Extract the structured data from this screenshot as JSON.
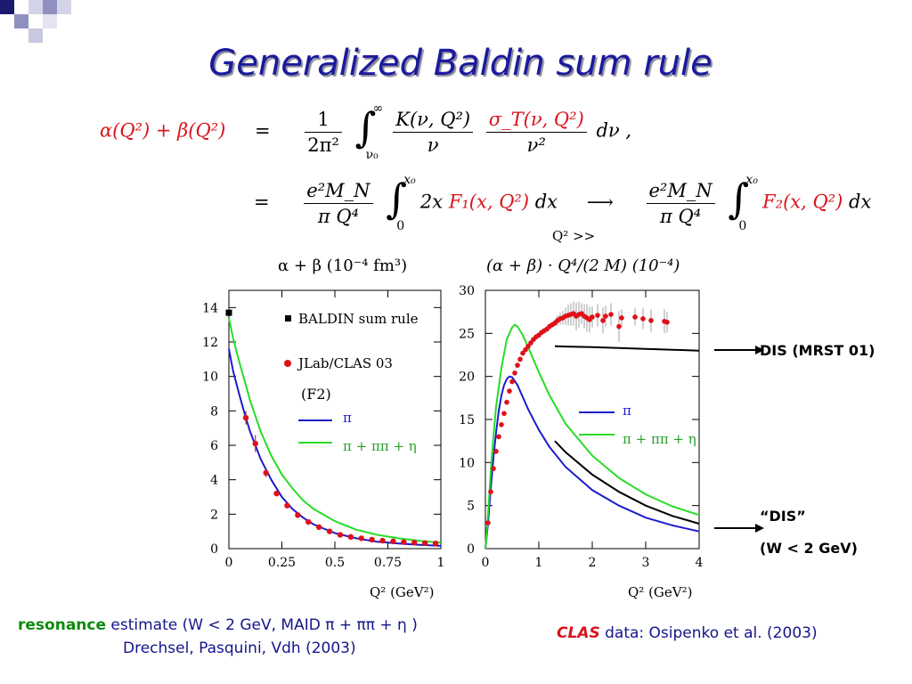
{
  "slide": {
    "title": "Generalized Baldin sum rule",
    "equation": {
      "lhs": "α(Q²) + β(Q²)",
      "eq_sign": "=",
      "row1_frac_num": "1",
      "row1_frac_den": "2π²",
      "row1_int_upper": "∞",
      "row1_int_lower": "ν₀",
      "row1_term1_num": "K(ν, Q²)",
      "row1_term1_den": "ν",
      "row1_term2_num": "σ_T(ν, Q²)",
      "row1_term2_den": "ν²",
      "row1_tail": "dν ,",
      "row2_frac_num": "e²M_N",
      "row2_frac_den": "π Q⁴",
      "row2_int_upper": "x₀",
      "row2_int_lower": "0",
      "row2_integrand_a": "2x",
      "row2_integrand_red": "F₁(x, Q²)",
      "row2_integrand_b": "dx",
      "arrow": "⟶",
      "row2_int2_upper": "x₀",
      "row2_int2_lower": "0",
      "row2_integrand2_red": "F₂(x, Q²)",
      "row2_integrand2_b": "dx",
      "q2_note": "Q² >>"
    },
    "left_plot_label": "α + β  (10⁻⁴ fm³)",
    "right_plot_label": "(α + β) · Q⁴/(2 M)  (10⁻⁴)",
    "notes": {
      "dis_mrst": "DIS (MRST 01)",
      "dis_quoted": "“DIS”",
      "w_cut": "(W < 2 GeV)"
    },
    "caption_left_line1": {
      "bold": "resonance",
      "rest": " estimate (W < 2 GeV, MAID π  + ππ + η )"
    },
    "caption_left_line2": "Drechsel, Pasquini, Vdh (2003)",
    "caption_right": {
      "bold": "CLAS",
      "rest": " data:  Osipenko et al. (2003)"
    }
  },
  "chart_data": [
    {
      "type": "line",
      "xlabel": "Q² (GeV²)",
      "ylabel": "",
      "xlim": [
        0,
        1
      ],
      "ylim": [
        0,
        15
      ],
      "xticks": [
        "0",
        "0.25",
        "0.5",
        "0.75",
        "1"
      ],
      "yticks": [
        "0",
        "2",
        "4",
        "6",
        "8",
        "10",
        "12",
        "14"
      ],
      "legend_position": "top-right",
      "legend": {
        "baldin": "BALDIN sum rule",
        "clas": "JLab/CLAS 03",
        "f2": "(F2)",
        "pi": "π",
        "pi_pipi_eta": "π + ππ + η"
      },
      "baldin_point": {
        "x": 0.0,
        "y": 13.7
      },
      "series": [
        {
          "name": "π",
          "color": "#1c1ccc",
          "points": [
            [
              0,
              11.6
            ],
            [
              0.02,
              10.3
            ],
            [
              0.05,
              8.9
            ],
            [
              0.08,
              7.6
            ],
            [
              0.1,
              6.8
            ],
            [
              0.15,
              5.2
            ],
            [
              0.2,
              4.0
            ],
            [
              0.25,
              3.0
            ],
            [
              0.3,
              2.3
            ],
            [
              0.35,
              1.8
            ],
            [
              0.4,
              1.4
            ],
            [
              0.5,
              0.9
            ],
            [
              0.6,
              0.6
            ],
            [
              0.7,
              0.4
            ],
            [
              0.8,
              0.3
            ],
            [
              0.9,
              0.22
            ],
            [
              1.0,
              0.16
            ]
          ]
        },
        {
          "name": "π + ππ + η",
          "color": "#28dc28",
          "points": [
            [
              0,
              13.4
            ],
            [
              0.02,
              12.2
            ],
            [
              0.05,
              10.8
            ],
            [
              0.08,
              9.5
            ],
            [
              0.1,
              8.6
            ],
            [
              0.15,
              6.8
            ],
            [
              0.2,
              5.4
            ],
            [
              0.25,
              4.3
            ],
            [
              0.3,
              3.5
            ],
            [
              0.35,
              2.8
            ],
            [
              0.4,
              2.3
            ],
            [
              0.5,
              1.6
            ],
            [
              0.6,
              1.1
            ],
            [
              0.7,
              0.8
            ],
            [
              0.8,
              0.6
            ],
            [
              0.9,
              0.45
            ],
            [
              1.0,
              0.35
            ]
          ]
        }
      ],
      "clas_points": [
        {
          "x": 0.08,
          "y": 7.6,
          "err": 0.4
        },
        {
          "x": 0.125,
          "y": 6.1,
          "err": 0.5
        },
        {
          "x": 0.175,
          "y": 4.4,
          "err": 0.25
        },
        {
          "x": 0.225,
          "y": 3.2,
          "err": 0.1
        },
        {
          "x": 0.275,
          "y": 2.5,
          "err": 0.1
        },
        {
          "x": 0.325,
          "y": 1.95,
          "err": 0.1
        },
        {
          "x": 0.375,
          "y": 1.55,
          "err": 0.08
        },
        {
          "x": 0.425,
          "y": 1.25,
          "err": 0.08
        },
        {
          "x": 0.475,
          "y": 1.0,
          "err": 0.06
        },
        {
          "x": 0.525,
          "y": 0.8,
          "err": 0.06
        },
        {
          "x": 0.575,
          "y": 0.68,
          "err": 0.05
        },
        {
          "x": 0.625,
          "y": 0.6,
          "err": 0.05
        },
        {
          "x": 0.675,
          "y": 0.52,
          "err": 0.05
        },
        {
          "x": 0.725,
          "y": 0.46,
          "err": 0.04
        },
        {
          "x": 0.775,
          "y": 0.42,
          "err": 0.04
        },
        {
          "x": 0.825,
          "y": 0.38,
          "err": 0.04
        },
        {
          "x": 0.875,
          "y": 0.35,
          "err": 0.04
        },
        {
          "x": 0.925,
          "y": 0.32,
          "err": 0.03
        },
        {
          "x": 0.975,
          "y": 0.3,
          "err": 0.03
        }
      ]
    },
    {
      "type": "line",
      "xlabel": "Q² (GeV²)",
      "ylabel": "",
      "xlim": [
        0,
        4
      ],
      "ylim": [
        0,
        30
      ],
      "xticks": [
        "0",
        "1",
        "2",
        "3",
        "4"
      ],
      "yticks": [
        "0",
        "5",
        "10",
        "15",
        "20",
        "25",
        "30"
      ],
      "legend_position": "right",
      "legend": {
        "pi": "π",
        "pi_pipi_eta": "π + ππ + η"
      },
      "series": [
        {
          "name": "π",
          "color": "#1c1ccc",
          "points": [
            [
              0,
              0
            ],
            [
              0.05,
              3
            ],
            [
              0.1,
              7
            ],
            [
              0.15,
              10.5
            ],
            [
              0.2,
              13.5
            ],
            [
              0.25,
              16
            ],
            [
              0.3,
              17.8
            ],
            [
              0.35,
              19
            ],
            [
              0.4,
              19.7
            ],
            [
              0.45,
              20
            ],
            [
              0.5,
              19.9
            ],
            [
              0.6,
              19
            ],
            [
              0.7,
              17.6
            ],
            [
              0.8,
              16.2
            ],
            [
              1.0,
              13.8
            ],
            [
              1.2,
              11.8
            ],
            [
              1.5,
              9.5
            ],
            [
              2.0,
              6.8
            ],
            [
              2.5,
              5.0
            ],
            [
              3.0,
              3.6
            ],
            [
              3.5,
              2.7
            ],
            [
              4.0,
              2.0
            ]
          ]
        },
        {
          "name": "π + ππ + η",
          "color": "#28dc28",
          "points": [
            [
              0,
              0
            ],
            [
              0.05,
              4
            ],
            [
              0.1,
              9
            ],
            [
              0.15,
              13
            ],
            [
              0.2,
              16.5
            ],
            [
              0.3,
              21
            ],
            [
              0.4,
              24.3
            ],
            [
              0.5,
              25.7
            ],
            [
              0.55,
              26
            ],
            [
              0.6,
              25.8
            ],
            [
              0.7,
              24.8
            ],
            [
              0.8,
              23.4
            ],
            [
              1.0,
              20.5
            ],
            [
              1.2,
              17.8
            ],
            [
              1.5,
              14.5
            ],
            [
              2.0,
              10.8
            ],
            [
              2.5,
              8.2
            ],
            [
              3.0,
              6.3
            ],
            [
              3.5,
              4.9
            ],
            [
              4.0,
              3.9
            ]
          ]
        },
        {
          "name": "\"DIS\"",
          "color": "#000000",
          "points": [
            [
              1.3,
              12.5
            ],
            [
              1.5,
              11.2
            ],
            [
              2.0,
              8.6
            ],
            [
              2.5,
              6.6
            ],
            [
              3.0,
              5.0
            ],
            [
              3.5,
              3.8
            ],
            [
              4.0,
              2.9
            ]
          ]
        },
        {
          "name": "DIS (MRST 01)",
          "color": "#000000",
          "points": [
            [
              1.3,
              23.5
            ],
            [
              2.0,
              23.4
            ],
            [
              3.0,
              23.2
            ],
            [
              4.0,
              23.0
            ]
          ]
        }
      ],
      "clas_points": [
        {
          "x": 0.05,
          "y": 3.0,
          "err": 0.2
        },
        {
          "x": 0.1,
          "y": 6.6,
          "err": 0.3
        },
        {
          "x": 0.15,
          "y": 9.3,
          "err": 0.3
        },
        {
          "x": 0.2,
          "y": 11.3,
          "err": 0.3
        },
        {
          "x": 0.25,
          "y": 13.0,
          "err": 0.3
        },
        {
          "x": 0.3,
          "y": 14.4,
          "err": 0.3
        },
        {
          "x": 0.35,
          "y": 15.7,
          "err": 0.3
        },
        {
          "x": 0.4,
          "y": 17.0,
          "err": 0.3
        },
        {
          "x": 0.45,
          "y": 18.3,
          "err": 0.3
        },
        {
          "x": 0.5,
          "y": 19.4,
          "err": 0.3
        },
        {
          "x": 0.55,
          "y": 20.4,
          "err": 0.3
        },
        {
          "x": 0.6,
          "y": 21.3,
          "err": 0.3
        },
        {
          "x": 0.65,
          "y": 22.0,
          "err": 0.3
        },
        {
          "x": 0.7,
          "y": 22.7,
          "err": 0.3
        },
        {
          "x": 0.75,
          "y": 23.1,
          "err": 0.3
        },
        {
          "x": 0.8,
          "y": 23.5,
          "err": 0.3
        },
        {
          "x": 0.85,
          "y": 23.9,
          "err": 0.3
        },
        {
          "x": 0.9,
          "y": 24.3,
          "err": 0.3
        },
        {
          "x": 0.95,
          "y": 24.6,
          "err": 0.3
        },
        {
          "x": 1.0,
          "y": 24.8,
          "err": 0.3
        },
        {
          "x": 1.05,
          "y": 25.1,
          "err": 0.3
        },
        {
          "x": 1.1,
          "y": 25.3,
          "err": 0.3
        },
        {
          "x": 1.15,
          "y": 25.5,
          "err": 0.3
        },
        {
          "x": 1.2,
          "y": 25.8,
          "err": 0.3
        },
        {
          "x": 1.25,
          "y": 26.0,
          "err": 0.3
        },
        {
          "x": 1.3,
          "y": 26.2,
          "err": 0.4
        },
        {
          "x": 1.35,
          "y": 26.5,
          "err": 0.6
        },
        {
          "x": 1.4,
          "y": 26.7,
          "err": 0.7
        },
        {
          "x": 1.45,
          "y": 26.8,
          "err": 0.8
        },
        {
          "x": 1.5,
          "y": 27.0,
          "err": 1.0
        },
        {
          "x": 1.55,
          "y": 27.1,
          "err": 1.2
        },
        {
          "x": 1.6,
          "y": 27.2,
          "err": 1.3
        },
        {
          "x": 1.65,
          "y": 27.3,
          "err": 1.4
        },
        {
          "x": 1.7,
          "y": 27.0,
          "err": 1.6
        },
        {
          "x": 1.75,
          "y": 27.2,
          "err": 1.5
        },
        {
          "x": 1.8,
          "y": 27.3,
          "err": 1.2
        },
        {
          "x": 1.85,
          "y": 27.0,
          "err": 1.4
        },
        {
          "x": 1.9,
          "y": 26.8,
          "err": 1.6
        },
        {
          "x": 1.95,
          "y": 26.6,
          "err": 1.5
        },
        {
          "x": 2.0,
          "y": 26.9,
          "err": 1.2
        },
        {
          "x": 2.1,
          "y": 27.1,
          "err": 1.3
        },
        {
          "x": 2.2,
          "y": 26.5,
          "err": 1.5
        },
        {
          "x": 2.25,
          "y": 27.0,
          "err": 1.2
        },
        {
          "x": 2.35,
          "y": 27.2,
          "err": 1.3
        },
        {
          "x": 2.5,
          "y": 25.8,
          "err": 1.8
        },
        {
          "x": 2.55,
          "y": 26.8,
          "err": 1.0
        },
        {
          "x": 2.8,
          "y": 26.9,
          "err": 1.0
        },
        {
          "x": 2.95,
          "y": 26.7,
          "err": 1.2
        },
        {
          "x": 3.1,
          "y": 26.5,
          "err": 1.3
        },
        {
          "x": 3.35,
          "y": 26.4,
          "err": 1.4
        },
        {
          "x": 3.4,
          "y": 26.3,
          "err": 1.2
        }
      ]
    }
  ]
}
